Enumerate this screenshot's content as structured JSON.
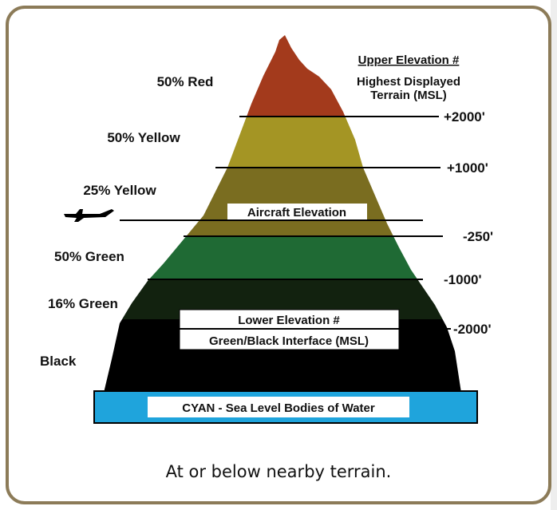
{
  "left_labels": [
    "50% Red",
    "50% Yellow",
    "25% Yellow",
    "50% Green",
    "16% Green",
    "Black"
  ],
  "upper_note": [
    "Upper Elevation #",
    "Highest Displayed",
    "Terrain (MSL)"
  ],
  "elevations": [
    "+2000'",
    "+1000'",
    "-250'",
    "-1000'",
    "-2000'"
  ],
  "aircraft_label": "Aircraft Elevation",
  "lower_note": [
    "Lower Elevation #",
    "Green/Black Interface (MSL)"
  ],
  "water_label": "CYAN - Sea Level  Bodies of Water",
  "caption": "At or below nearby terrain."
}
